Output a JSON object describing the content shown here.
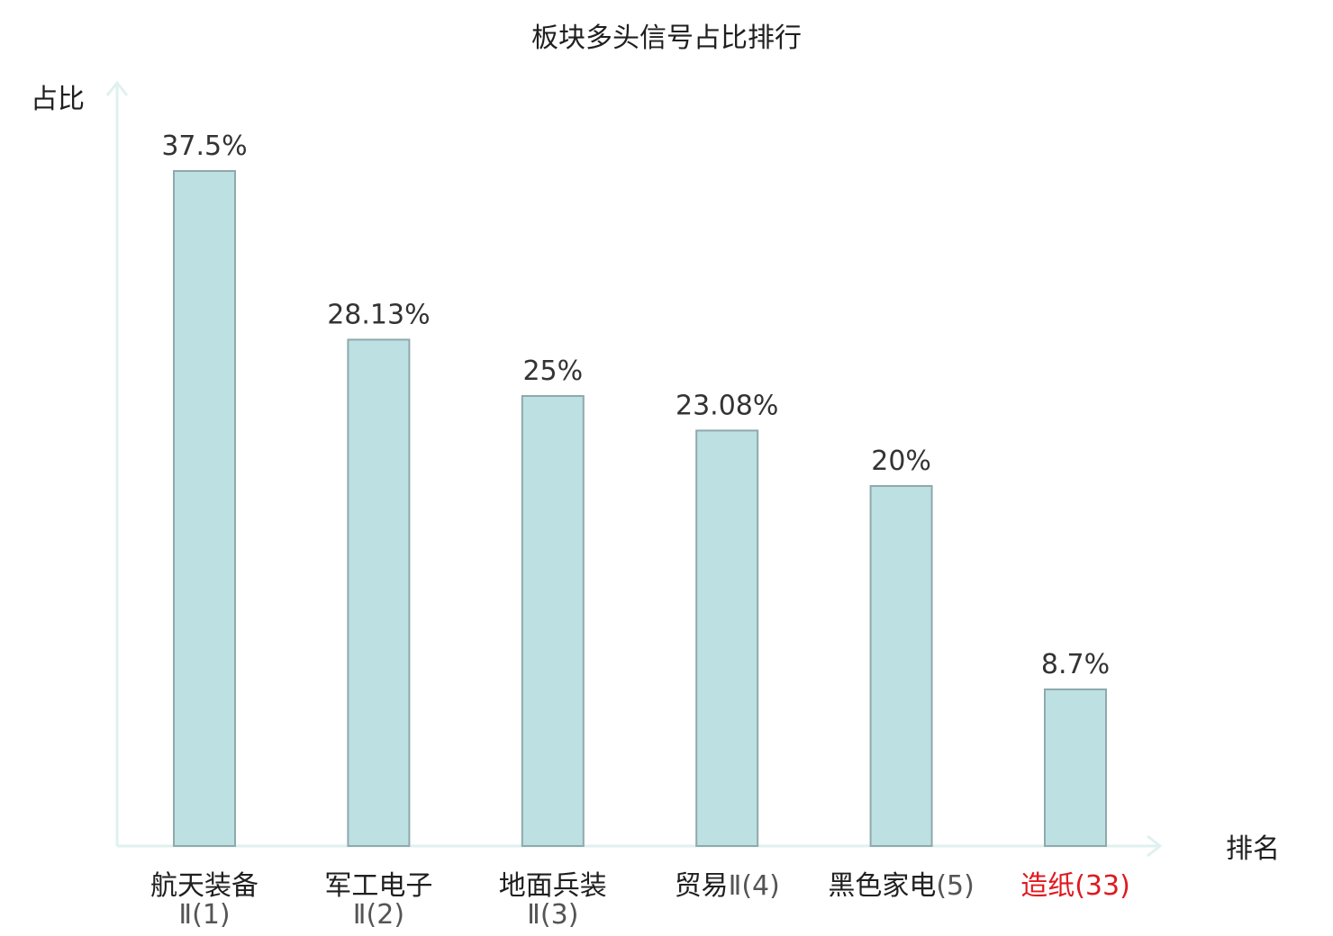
{
  "chart_data": {
    "type": "bar",
    "title": "板块多头信号占比排行",
    "ylabel": "占比",
    "xlabel": "排名",
    "ylim": [
      0,
      40
    ],
    "grid": false,
    "categories": [
      {
        "main": "航天装备",
        "sub": "Ⅱ(1)"
      },
      {
        "main": "军工电子",
        "sub": "Ⅱ(2)"
      },
      {
        "main": "地面兵装",
        "sub": "Ⅱ(3)"
      },
      {
        "main": "贸易",
        "sub": "Ⅱ(4)"
      },
      {
        "main": "黑色家电",
        "sub": "(5)"
      },
      {
        "main": "造纸",
        "sub": "(33)",
        "highlight": true
      }
    ],
    "values": [
      37.5,
      28.13,
      25,
      23.08,
      20,
      8.7
    ],
    "value_labels": [
      "37.5%",
      "28.13%",
      "25%",
      "23.08%",
      "20%",
      "8.7%"
    ],
    "colors": {
      "bar_fill": "#bde0e3",
      "bar_stroke": "#8fa9ac",
      "axis": "#dff1ef",
      "highlight_label": "#e0191f"
    }
  }
}
